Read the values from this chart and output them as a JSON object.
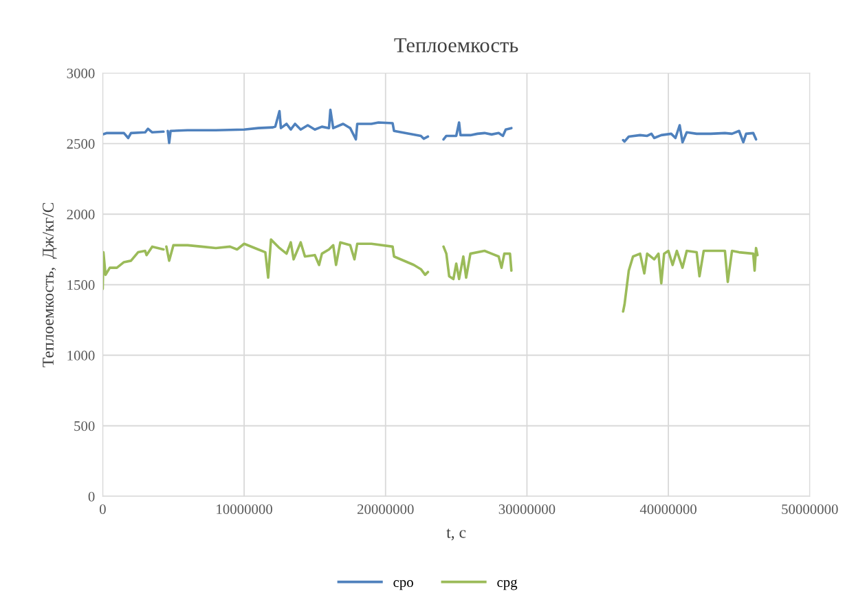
{
  "chart_data": {
    "type": "line",
    "title": "Теплоемкость",
    "xlabel": "t, с",
    "ylabel": "Теплоемкость,  Дж/кг/С",
    "xlim": [
      0,
      50000000
    ],
    "xticks": [
      0,
      10000000,
      20000000,
      30000000,
      40000000,
      50000000
    ],
    "ylim": [
      0,
      3000
    ],
    "yticks": [
      0,
      500,
      1000,
      1500,
      2000,
      2500,
      3000
    ],
    "grid": true,
    "legend": "bottom",
    "marker": "none",
    "line_style": "solid",
    "series": [
      {
        "name": "cpo",
        "color": "#4f81bd",
        "x": [
          0,
          300000,
          1500000,
          1800000,
          2000000,
          3000000,
          3200000,
          3500000,
          4300000,
          4450000,
          4600000,
          4700000,
          4800000,
          6000000,
          8000000,
          10000000,
          11000000,
          12000000,
          12200000,
          12500000,
          12600000,
          13000000,
          13300000,
          13600000,
          14000000,
          14500000,
          15000000,
          15500000,
          16000000,
          16100000,
          16300000,
          17000000,
          17500000,
          17900000,
          18000000,
          19000000,
          19500000,
          20500000,
          20600000,
          22500000,
          22700000,
          23000000,
          23500000,
          24100000,
          24300000,
          25000000,
          25200000,
          25300000,
          26000000,
          26500000,
          27000000,
          27500000,
          28000000,
          28300000,
          28500000,
          28900000,
          33000000,
          36800000,
          36900000,
          37200000,
          38000000,
          38500000,
          38800000,
          39000000,
          39500000,
          40200000,
          40500000,
          40700000,
          40800000,
          41000000,
          41300000,
          42000000,
          43000000,
          44000000,
          44500000,
          45000000,
          45300000,
          45500000,
          46000000,
          46200000
        ],
        "values": [
          2565,
          2575,
          2575,
          2540,
          2575,
          2580,
          2605,
          2580,
          2585,
          null,
          2590,
          2505,
          2590,
          2595,
          2595,
          2600,
          2610,
          2615,
          2620,
          2730,
          2610,
          2640,
          2600,
          2640,
          2600,
          2630,
          2600,
          2620,
          2610,
          2740,
          2610,
          2640,
          2610,
          2530,
          2640,
          2640,
          2650,
          2645,
          2590,
          2555,
          2535,
          2550,
          null,
          2530,
          2555,
          2555,
          2650,
          2560,
          2560,
          2570,
          2575,
          2565,
          2575,
          2555,
          2600,
          2610,
          null,
          2525,
          2515,
          2550,
          2560,
          2555,
          2570,
          2540,
          2560,
          2570,
          2540,
          2600,
          2630,
          2510,
          2580,
          2570,
          2570,
          2575,
          2570,
          2590,
          2510,
          2570,
          2575,
          2530
        ]
      },
      {
        "name": "cpg",
        "color": "#9bbb59",
        "x": [
          0,
          50000,
          200000,
          500000,
          1000000,
          1500000,
          2000000,
          2500000,
          3000000,
          3100000,
          3500000,
          4300000,
          4400000,
          4500000,
          4700000,
          5000000,
          6000000,
          7000000,
          8000000,
          9000000,
          9500000,
          10000000,
          11000000,
          11500000,
          11700000,
          11900000,
          12500000,
          13000000,
          13300000,
          13500000,
          14000000,
          14300000,
          15000000,
          15300000,
          15500000,
          16000000,
          16300000,
          16500000,
          16800000,
          17500000,
          17800000,
          18000000,
          19000000,
          20500000,
          20600000,
          22000000,
          22500000,
          22800000,
          23000000,
          23500000,
          24100000,
          24300000,
          24500000,
          24800000,
          25000000,
          25200000,
          25500000,
          25700000,
          26000000,
          27000000,
          27500000,
          28000000,
          28200000,
          28400000,
          28800000,
          28900000,
          33000000,
          36800000,
          36900000,
          37200000,
          37500000,
          38000000,
          38300000,
          38500000,
          39000000,
          39300000,
          39500000,
          39700000,
          40000000,
          40300000,
          40600000,
          41000000,
          41300000,
          42000000,
          42200000,
          42500000,
          44000000,
          44200000,
          44500000,
          45000000,
          46000000,
          46100000,
          46200000,
          46300000
        ],
        "values": [
          1470,
          1730,
          1570,
          1620,
          1620,
          1660,
          1670,
          1730,
          1740,
          1710,
          1770,
          1750,
          null,
          1770,
          1670,
          1780,
          1780,
          1770,
          1760,
          1770,
          1750,
          1790,
          1750,
          1730,
          1550,
          1820,
          1760,
          1720,
          1800,
          1680,
          1800,
          1700,
          1710,
          1640,
          1720,
          1750,
          1780,
          1640,
          1800,
          1780,
          1680,
          1790,
          1790,
          1770,
          1700,
          1640,
          1610,
          1570,
          1590,
          null,
          1770,
          1720,
          1560,
          1540,
          1650,
          1540,
          1700,
          1550,
          1720,
          1740,
          1720,
          1700,
          1620,
          1720,
          1720,
          1600,
          null,
          1310,
          1360,
          1600,
          1700,
          1720,
          1580,
          1720,
          1680,
          1720,
          1510,
          1720,
          1740,
          1640,
          1740,
          1620,
          1740,
          1730,
          1560,
          1740,
          1740,
          1520,
          1740,
          1730,
          1720,
          1600,
          1760,
          1710
        ]
      }
    ]
  }
}
